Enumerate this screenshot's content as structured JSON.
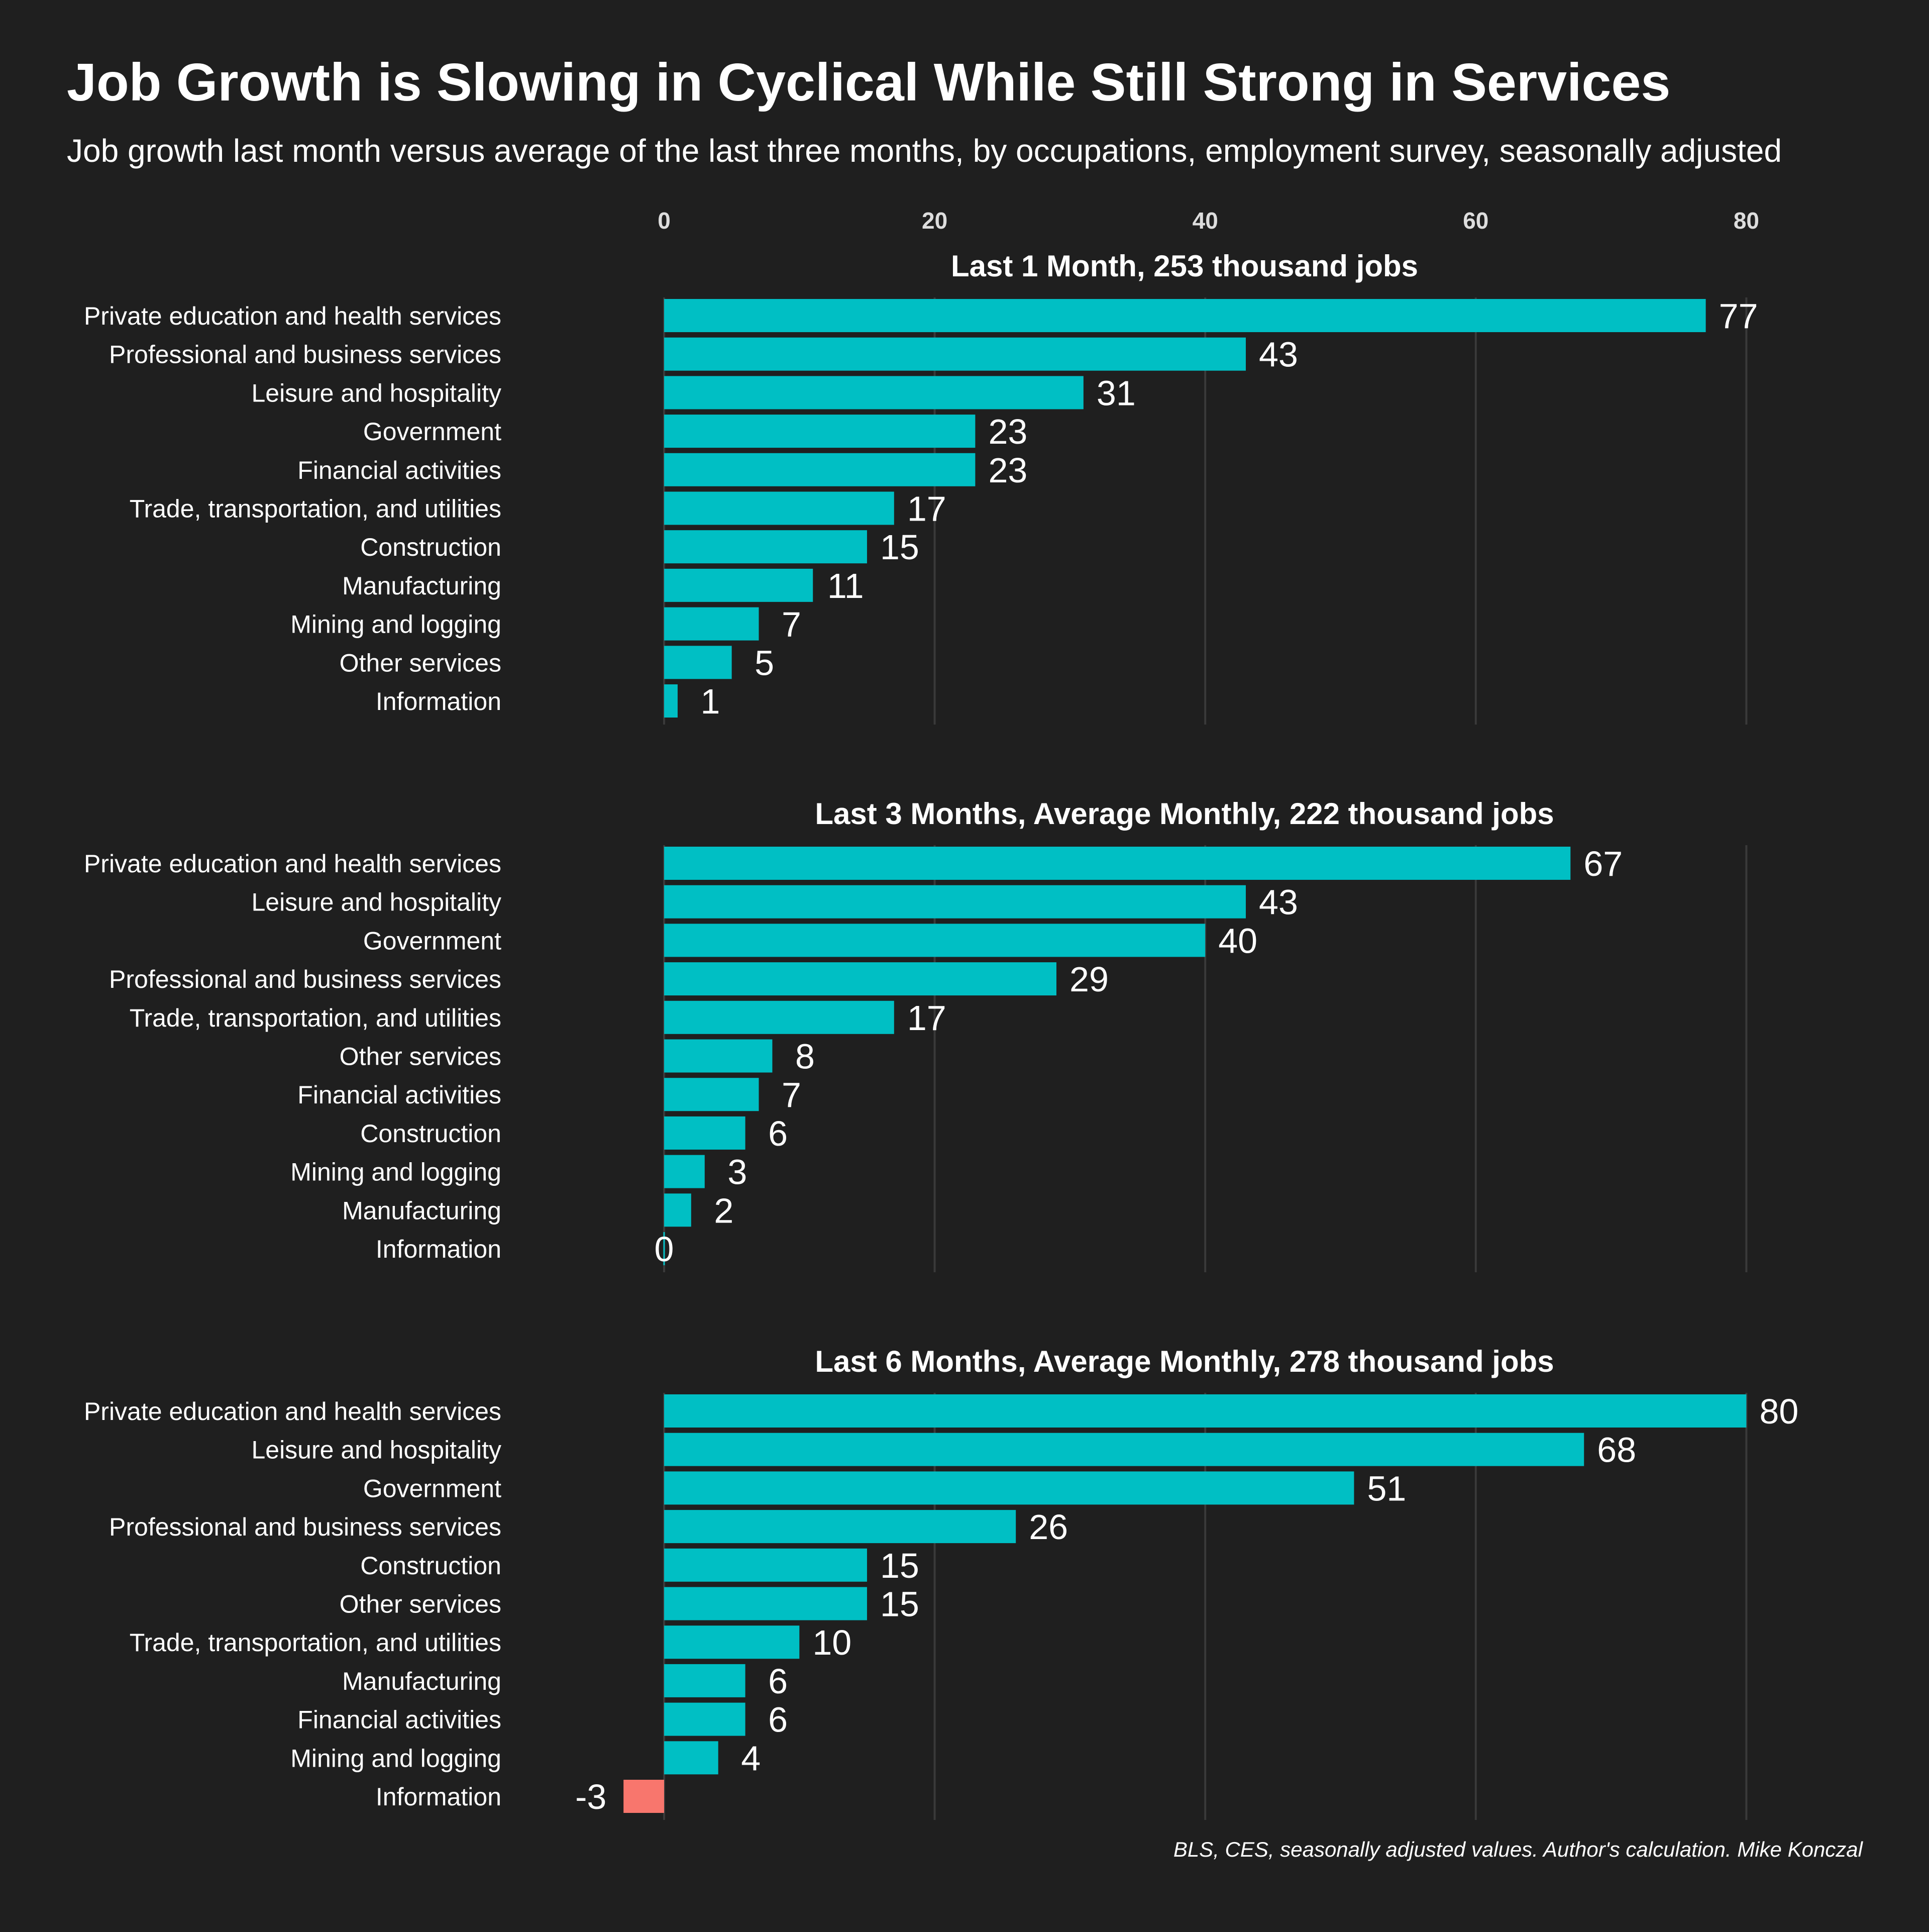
{
  "title": "Job Growth is Slowing in Cyclical While Still Strong in Services",
  "subtitle": "Job growth last month versus average of the last three months, by occupations, employment survey, seasonally adjusted",
  "caption": "BLS, CES, seasonally adjusted values. Author's calculation. Mike Konczal",
  "colors": {
    "background": "#1f1f1f",
    "positive": "#00bfc4",
    "negative": "#f8766d",
    "grid": "#3a3a3a",
    "text": "#ffffff",
    "axis_text": "#dddddd"
  },
  "chart_data": {
    "type": "bar",
    "orientation": "horizontal",
    "x_ticks": [
      0,
      20,
      40,
      60,
      80
    ],
    "x_tick_labels": [
      "0",
      "20",
      "40",
      "60",
      "80"
    ],
    "xlim": [
      -3,
      80
    ],
    "grid": "vertical",
    "units": "thousand jobs",
    "panels": [
      {
        "title": "Last 1 Month, 253 thousand jobs",
        "categories": [
          "Private education and health services",
          "Professional and business services",
          "Leisure and hospitality",
          "Government",
          "Financial activities",
          "Trade, transportation, and utilities",
          "Construction",
          "Manufacturing",
          "Mining and logging",
          "Other services",
          "Information"
        ],
        "values": [
          77,
          43,
          31,
          23,
          23,
          17,
          15,
          11,
          7,
          5,
          1
        ],
        "labels": [
          "77",
          "43",
          "31",
          "23",
          "23",
          "17",
          "15",
          "11",
          "7",
          "5",
          "1"
        ]
      },
      {
        "title": "Last 3 Months, Average Monthly, 222 thousand jobs",
        "categories": [
          "Private education and health services",
          "Leisure and hospitality",
          "Government",
          "Professional and business services",
          "Trade, transportation, and utilities",
          "Other services",
          "Financial activities",
          "Construction",
          "Mining and logging",
          "Manufacturing",
          "Information"
        ],
        "values": [
          67,
          43,
          40,
          29,
          17,
          8,
          7,
          6,
          3,
          2,
          0
        ],
        "labels": [
          "67",
          "43",
          "40",
          "29",
          "17",
          "8",
          "7",
          "6",
          "3",
          "2",
          "0"
        ]
      },
      {
        "title": "Last 6 Months, Average Monthly, 278 thousand jobs",
        "categories": [
          "Private education and health services",
          "Leisure and hospitality",
          "Government",
          "Professional and business services",
          "Construction",
          "Other services",
          "Trade, transportation, and utilities",
          "Manufacturing",
          "Financial activities",
          "Mining and logging",
          "Information"
        ],
        "values": [
          80,
          68,
          51,
          26,
          15,
          15,
          10,
          6,
          6,
          4,
          -3
        ],
        "labels": [
          "80",
          "68",
          "51",
          "26",
          "15",
          "15",
          "10",
          "6",
          "6",
          "4",
          "-3"
        ]
      }
    ]
  }
}
